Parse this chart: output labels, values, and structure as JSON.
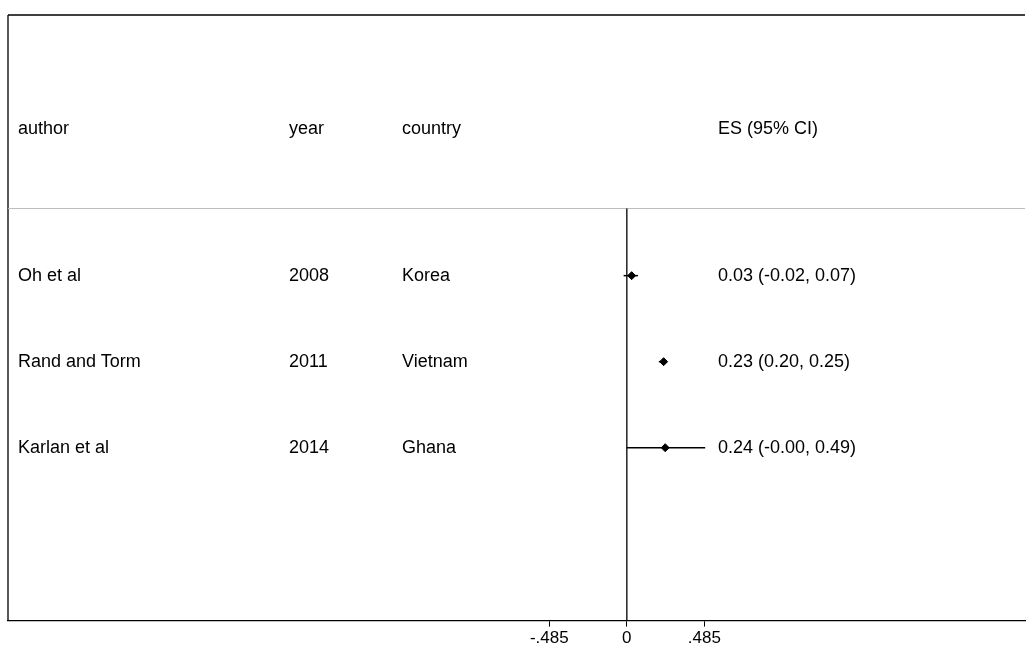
{
  "chart_data": {
    "type": "scatter",
    "orientation": "horizontal",
    "categories": [
      "Oh et al",
      "Rand and Torm",
      "Karlan et al"
    ],
    "values": [
      0.03,
      0.23,
      0.24
    ],
    "errors": [
      [
        -0.02,
        0.07
      ],
      [
        0.2,
        0.25
      ],
      [
        -0.0,
        0.49
      ]
    ],
    "color": "#000000",
    "marker": "diamond",
    "xlim": [
      -3.87,
      2.49
    ],
    "xticks": [
      {
        "value": -0.485,
        "label": "-.485"
      },
      0,
      {
        "value": 0.485,
        "label": ".485"
      }
    ],
    "ref_lines": [
      {
        "axis": "x",
        "value": 0,
        "color": "#000000"
      }
    ],
    "annotations": [
      "author",
      "year",
      "country",
      "ES (95% CI)",
      "2008",
      "Korea",
      "0.03 (-0.02, 0.07)",
      "2011",
      "Vietnam",
      "0.23 (0.20, 0.25)",
      "2014",
      "Ghana",
      "0.24 (-0.00, 0.49)"
    ],
    "grid": false,
    "legend": false
  }
}
